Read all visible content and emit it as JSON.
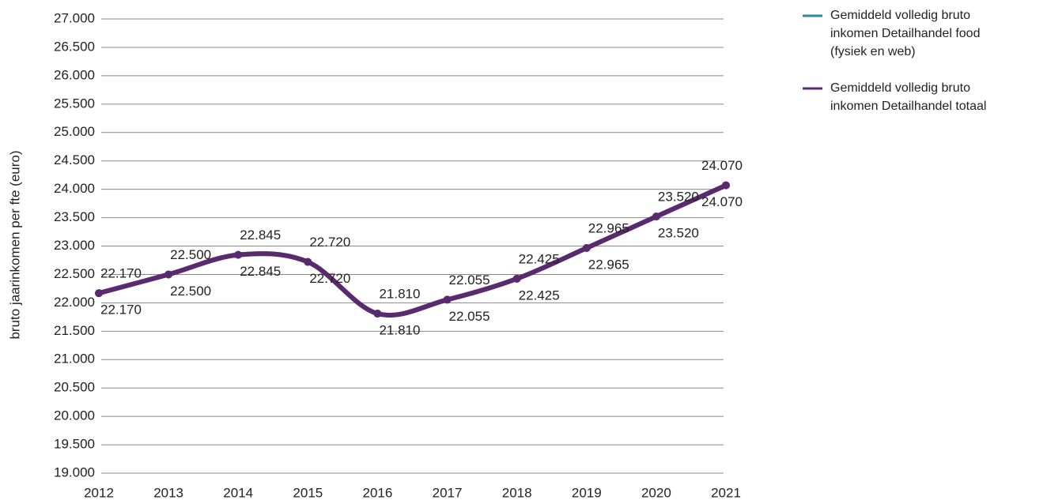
{
  "chart_data": {
    "type": "line",
    "y_label": "bruto jaarinkomen per fte (euro)",
    "categories": [
      "2012",
      "2013",
      "2014",
      "2015",
      "2016",
      "2017",
      "2018",
      "2019",
      "2020",
      "2021"
    ],
    "series": [
      {
        "name": "Gemiddeld volledig bruto inkomen Detailhandel food (fysiek en web)",
        "color": "#2a8aa8",
        "values": [
          22170,
          22500,
          22845,
          22720,
          21810,
          22055,
          22425,
          22965,
          23520,
          24070
        ],
        "value_labels": [
          "22.170",
          "22.500",
          "22.845",
          "22.720",
          "21.810",
          "22.055",
          "22.425",
          "22.965",
          "23.520",
          "24.070"
        ]
      },
      {
        "name": "Gemiddeld volledig bruto inkomen Detailhandel totaal",
        "color": "#5b2a6e",
        "values": [
          22170,
          22500,
          22845,
          22720,
          21810,
          22055,
          22425,
          22965,
          23520,
          24070
        ],
        "value_labels": [
          "22.170",
          "22.500",
          "22.845",
          "22.720",
          "21.810",
          "22.055",
          "22.425",
          "22.965",
          "23.520",
          "24.070"
        ]
      }
    ],
    "ylim": [
      19000,
      27000
    ],
    "yticks": [
      {
        "value": 19000,
        "label": "19.000"
      },
      {
        "value": 19500,
        "label": "19.500"
      },
      {
        "value": 20000,
        "label": "20.000"
      },
      {
        "value": 20500,
        "label": "20.500"
      },
      {
        "value": 21000,
        "label": "21.000"
      },
      {
        "value": 21500,
        "label": "21.500"
      },
      {
        "value": 22000,
        "label": "22.000"
      },
      {
        "value": 22500,
        "label": "22.500"
      },
      {
        "value": 23000,
        "label": "23.000"
      },
      {
        "value": 23500,
        "label": "23.500"
      },
      {
        "value": 24000,
        "label": "24.000"
      },
      {
        "value": 24500,
        "label": "24.500"
      },
      {
        "value": 25000,
        "label": "25.000"
      },
      {
        "value": 25500,
        "label": "25.500"
      },
      {
        "value": 26000,
        "label": "26.000"
      },
      {
        "value": 26500,
        "label": "26.500"
      },
      {
        "value": 27000,
        "label": "27.000"
      }
    ],
    "grid": true
  }
}
